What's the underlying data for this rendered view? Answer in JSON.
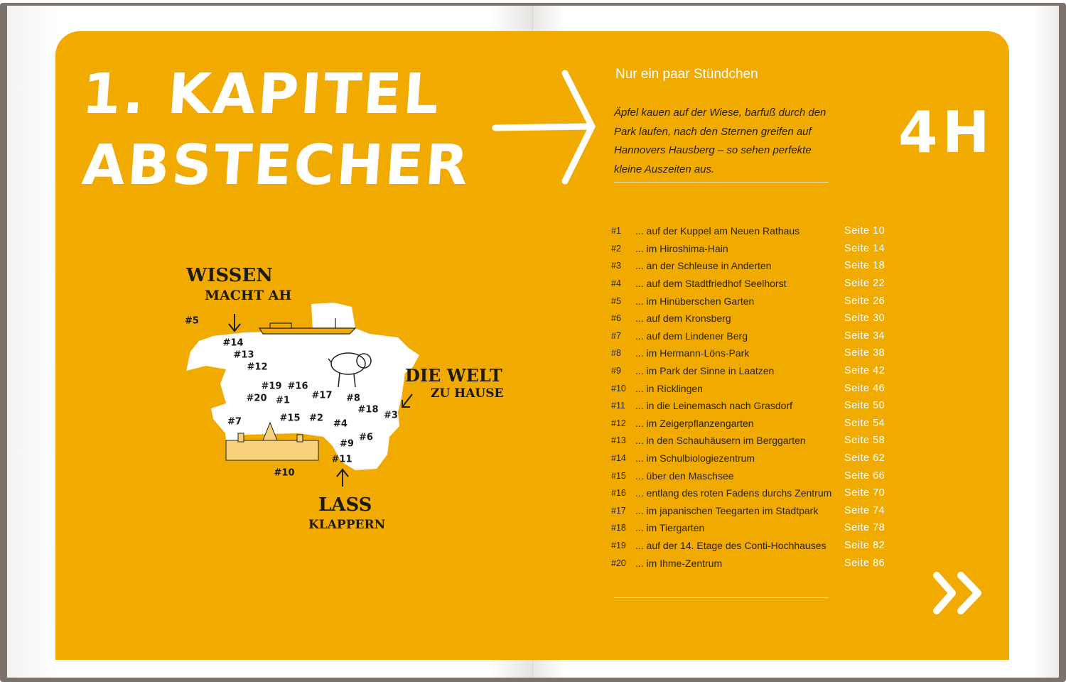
{
  "left_page": {
    "title_line1": "1. KAPITEL",
    "title_line2": "ABSTECHER",
    "map": {
      "callout_top": [
        "WISSEN",
        "MACHT AH"
      ],
      "callout_right": [
        "DIE WELT",
        "ZU HAUSE"
      ],
      "callout_bottom": [
        "LASS",
        "KLAPPERN"
      ],
      "markers": [
        "#1",
        "#2",
        "#3",
        "#4",
        "#5",
        "#6",
        "#7",
        "#8",
        "#9",
        "#10",
        "#11",
        "#12",
        "#13",
        "#14",
        "#15",
        "#16",
        "#17",
        "#18",
        "#19",
        "#20"
      ]
    }
  },
  "right_page": {
    "subtitle": "Nur ein paar Stündchen",
    "intro": "Äpfel kauen auf der Wiese, barfuß durch den Park laufen, nach den Sternen greifen auf Hannovers Hausberg – so sehen perfekte kleine Auszeiten aus.",
    "duration": "4H",
    "toc": [
      {
        "num": "#1",
        "label": "... auf der Kuppel am Neuen Rathaus",
        "page": "Seite 10"
      },
      {
        "num": "#2",
        "label": "... im Hiroshima-Hain",
        "page": "Seite 14"
      },
      {
        "num": "#3",
        "label": "... an der Schleuse in Anderten",
        "page": "Seite 18"
      },
      {
        "num": "#4",
        "label": "... auf dem Stadtfriedhof Seelhorst",
        "page": "Seite 22"
      },
      {
        "num": "#5",
        "label": "... im Hinüberschen Garten",
        "page": "Seite 26"
      },
      {
        "num": "#6",
        "label": "... auf dem Kronsberg",
        "page": "Seite 30"
      },
      {
        "num": "#7",
        "label": "... auf dem Lindener Berg",
        "page": "Seite 34"
      },
      {
        "num": "#8",
        "label": "... im Hermann-Löns-Park",
        "page": "Seite 38"
      },
      {
        "num": "#9",
        "label": "... im Park der Sinne in Laatzen",
        "page": "Seite 42"
      },
      {
        "num": "#10",
        "label": "... in Ricklingen",
        "page": "Seite 46"
      },
      {
        "num": "#11",
        "label": "... in die Leinemasch nach Grasdorf",
        "page": "Seite 50"
      },
      {
        "num": "#12",
        "label": "... im Zeigerpflanzengarten",
        "page": "Seite 54"
      },
      {
        "num": "#13",
        "label": "... in den Schauhäusern im Berggarten",
        "page": "Seite 58"
      },
      {
        "num": "#14",
        "label": "... im Schulbiologiezentrum",
        "page": "Seite 62"
      },
      {
        "num": "#15",
        "label": "... über den Maschsee",
        "page": "Seite 66"
      },
      {
        "num": "#16",
        "label": "... entlang des roten Fadens durchs Zentrum",
        "page": "Seite 70"
      },
      {
        "num": "#17",
        "label": "... im japanischen Teegarten im Stadtpark",
        "page": "Seite 74"
      },
      {
        "num": "#18",
        "label": "... im Tiergarten",
        "page": "Seite 78"
      },
      {
        "num": "#19",
        "label": "... auf der 14. Etage des Conti-Hochhauses",
        "page": "Seite 82"
      },
      {
        "num": "#20",
        "label": "... im Ihme-Zentrum",
        "page": "Seite 86"
      }
    ]
  },
  "colors": {
    "accent": "#f1aa00",
    "text": "#2e2508",
    "highlight": "#ffffff"
  }
}
